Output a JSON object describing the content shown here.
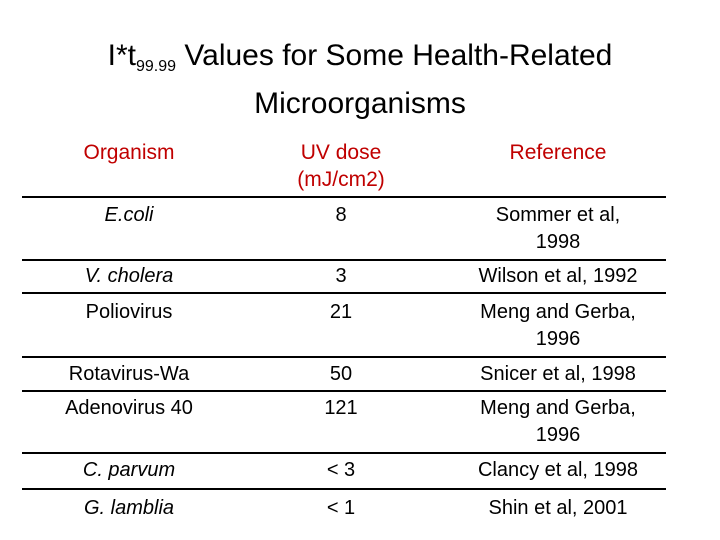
{
  "title": {
    "prefix": "I*t",
    "subscript": "99.99",
    "line1_rest": " Values for Some Health-Related",
    "line2": "Microorganisms"
  },
  "table": {
    "headers": {
      "organism": "Organism",
      "uv_dose_line1": "UV dose",
      "uv_dose_line2": "(mJ/cm2)",
      "reference": "Reference"
    },
    "rows": [
      {
        "organism": "E.coli",
        "italic": true,
        "dose": "8",
        "ref_line1": "Sommer et al,",
        "ref_line2": "1998"
      },
      {
        "organism": "V. cholera",
        "italic": true,
        "dose": "3",
        "ref_line1": "Wilson et al, 1992",
        "ref_line2": ""
      },
      {
        "organism": "Poliovirus",
        "italic": false,
        "dose": "21",
        "ref_line1": "Meng and Gerba,",
        "ref_line2": "1996"
      },
      {
        "organism": "Rotavirus-Wa",
        "italic": false,
        "dose": "50",
        "ref_line1": "Snicer et al, 1998",
        "ref_line2": ""
      },
      {
        "organism": "Adenovirus 40",
        "italic": false,
        "dose": "121",
        "ref_line1": "Meng and Gerba,",
        "ref_line2": "1996"
      },
      {
        "organism": "C. parvum",
        "italic": true,
        "dose": "< 3",
        "ref_line1": "Clancy et al, 1998",
        "ref_line2": ""
      },
      {
        "organism": "G. lamblia",
        "italic": true,
        "dose": "< 1",
        "ref_line1": "Shin et al, 2001",
        "ref_line2": ""
      }
    ]
  },
  "colors": {
    "header": "#c00000",
    "text": "#000000",
    "background": "#ffffff"
  }
}
